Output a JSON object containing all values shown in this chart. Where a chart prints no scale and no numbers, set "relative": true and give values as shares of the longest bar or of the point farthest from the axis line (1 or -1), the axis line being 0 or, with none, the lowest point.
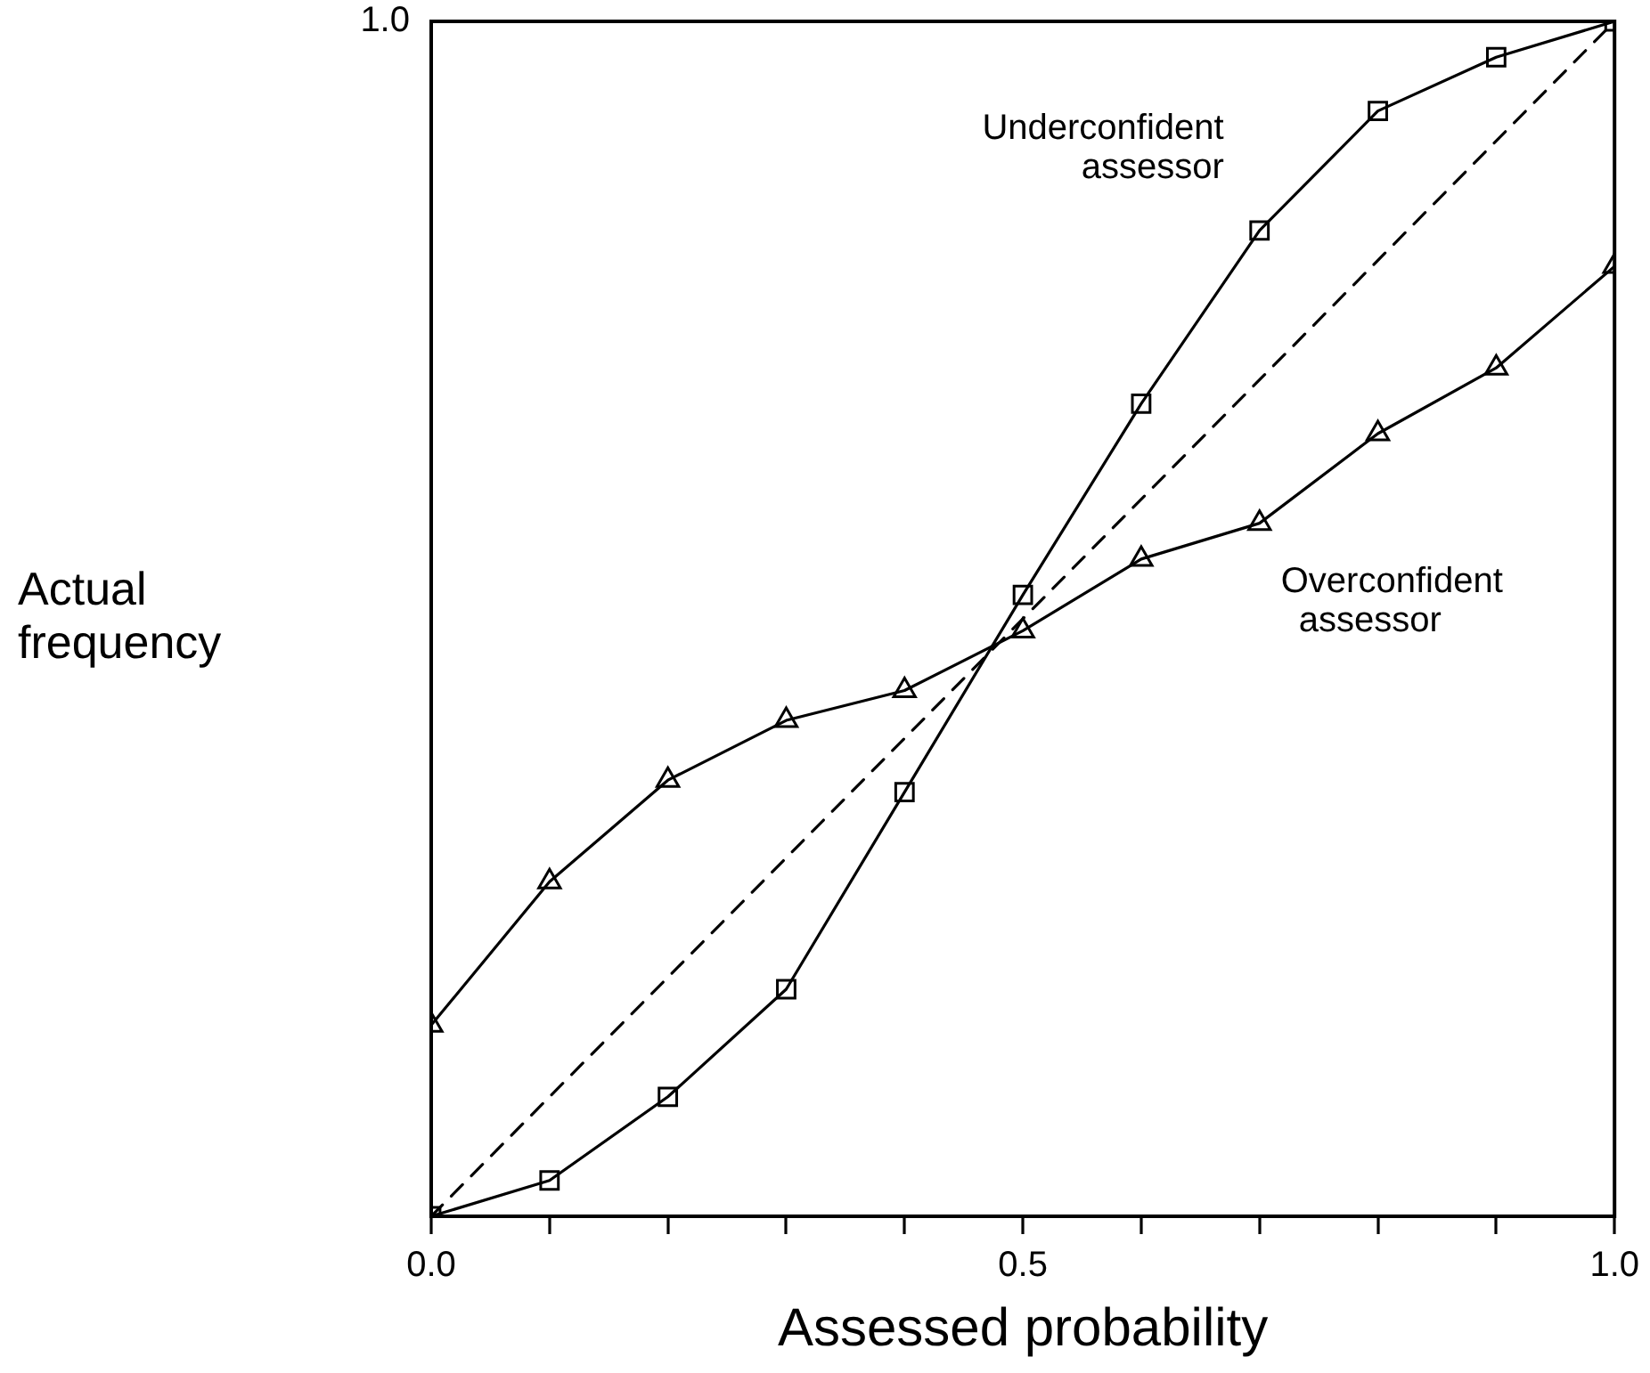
{
  "chart_data": {
    "type": "line",
    "xlabel": "Assessed probability",
    "ylabel": "Actual frequency",
    "xlim": [
      0,
      1
    ],
    "relative": true,
    "annotations": [
      "1.0"
    ],
    "xticks": [
      {
        "value": 0,
        "label": "0.0"
      },
      {
        "value": 0.1,
        "label": null
      },
      {
        "value": 0.2,
        "label": null
      },
      {
        "value": 0.3,
        "label": null
      },
      {
        "value": 0.4,
        "label": null
      },
      {
        "value": 0.5,
        "label": "0.5"
      },
      {
        "value": 0.6,
        "label": null
      },
      {
        "value": 0.7,
        "label": null
      },
      {
        "value": 0.8,
        "label": null
      },
      {
        "value": 0.9,
        "label": null
      },
      {
        "value": 1,
        "label": "1.0"
      }
    ],
    "grid": false,
    "legend": false,
    "series": [
      {
        "name": "Underconfident assessor",
        "color": "#000000",
        "marker": "square",
        "line_style": "solid",
        "x": [
          0,
          0.1,
          0.2,
          0.3,
          0.4,
          0.5,
          0.6,
          0.7,
          0.8,
          0.9,
          1
        ],
        "values": [
          0,
          0.03,
          0.1,
          0.19,
          0.355,
          0.52,
          0.68,
          0.825,
          0.925,
          0.97,
          1
        ]
      },
      {
        "name": "Overconfident assessor",
        "color": "#000000",
        "marker": "triangle",
        "line_style": "solid",
        "x": [
          0,
          0.1,
          0.2,
          0.3,
          0.4,
          0.5,
          0.6,
          0.7,
          0.8,
          0.9,
          1
        ],
        "values": [
          0.16,
          0.28,
          0.365,
          0.415,
          0.44,
          0.49,
          0.55,
          0.58,
          0.655,
          0.71,
          0.795
        ]
      },
      {
        "color": "#000000",
        "marker": "none",
        "line_style": "dashed",
        "x": [
          0,
          1
        ],
        "values": [
          0,
          1
        ]
      }
    ]
  }
}
